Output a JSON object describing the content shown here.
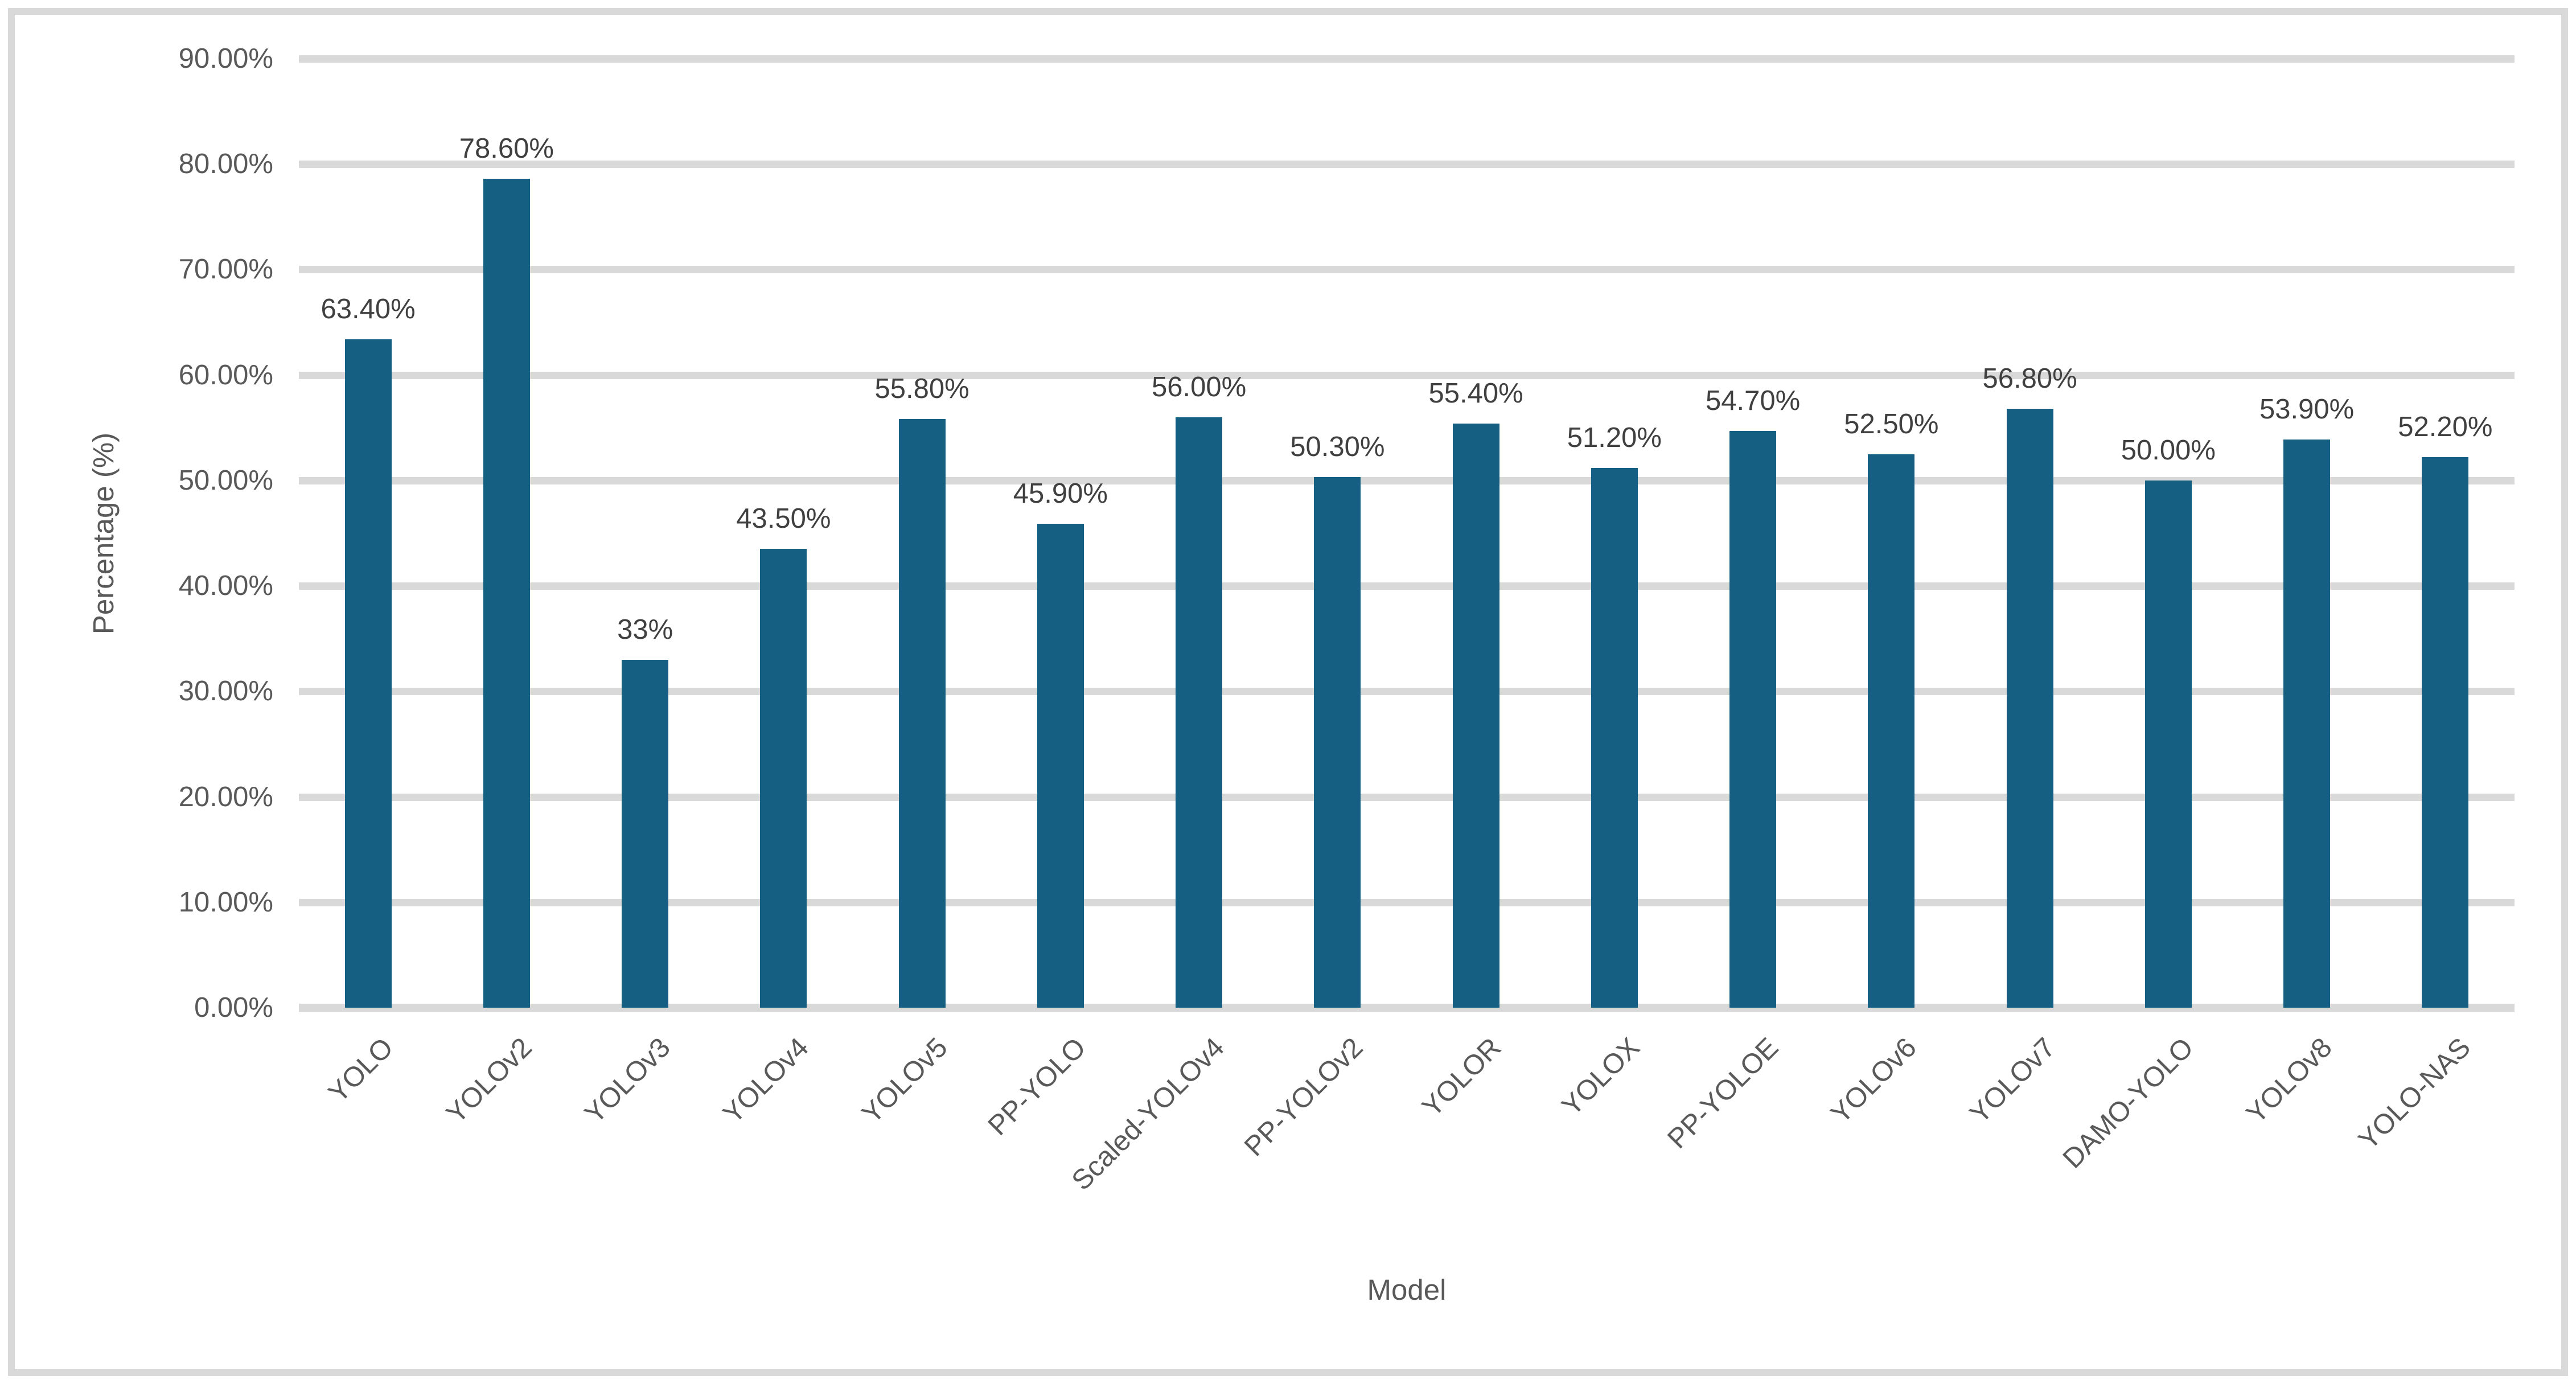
{
  "chart_data": {
    "type": "bar",
    "title": "",
    "categories": [
      "YOLO",
      "YOLOv2",
      "YOLOv3",
      "YOLOv4",
      "YOLOv5",
      "PP-YOLO",
      "Scaled-YOLOv4",
      "PP-YOLOv2",
      "YOLOR",
      "YOLOX",
      "PP-YOLOE",
      "YOLOv6",
      "YOLOv7",
      "DAMO-YOLO",
      "YOLOv8",
      "YOLO-NAS"
    ],
    "values": [
      63.4,
      78.6,
      33,
      43.5,
      55.8,
      45.9,
      56.0,
      50.3,
      55.4,
      51.2,
      54.7,
      52.5,
      56.8,
      50.0,
      53.9,
      52.2
    ],
    "data_labels": [
      "63.40%",
      "78.60%",
      "33%",
      "43.50%",
      "55.80%",
      "45.90%",
      "56.00%",
      "50.30%",
      "55.40%",
      "51.20%",
      "54.70%",
      "52.50%",
      "56.80%",
      "50.00%",
      "53.90%",
      "52.20%"
    ],
    "xlabel": "Model",
    "ylabel": "Percentage (%)",
    "ylim": [
      0,
      90
    ],
    "ytick_step": 10,
    "ytick_labels": [
      "0.00%",
      "10.00%",
      "20.00%",
      "30.00%",
      "40.00%",
      "50.00%",
      "60.00%",
      "70.00%",
      "80.00%",
      "90.00%"
    ],
    "grid": true,
    "legend": "none",
    "colors": {
      "bar_fill": "#156082",
      "gridline": "#D9D9D9",
      "axis_line": "#D9D9D9",
      "frame_border": "#D9D9D9",
      "tick_text": "#595959",
      "data_label_text": "#404040",
      "axis_title_text": "#595959",
      "background": "#FFFFFF"
    }
  }
}
